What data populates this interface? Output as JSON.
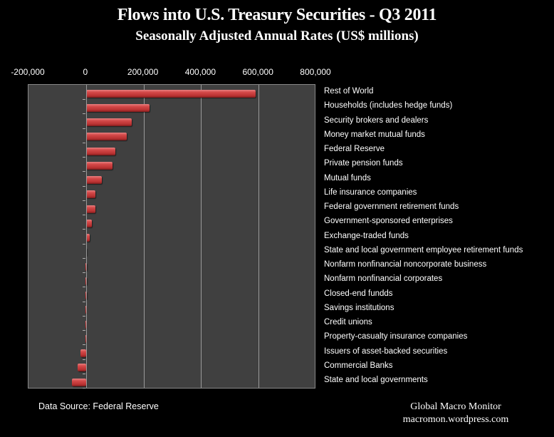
{
  "chart_data": {
    "type": "bar",
    "orientation": "horizontal",
    "title": "Flows into U.S. Treasury  Securities - Q3 2011",
    "subtitle": "Seasonally Adjusted Annual Rates (US$ millions)",
    "xlabel": "",
    "ylabel": "",
    "xlim": [
      -200000,
      800000
    ],
    "x_ticks": [
      "-200,000",
      "0",
      "200,000",
      "400,000",
      "600,000",
      "800,000"
    ],
    "x_tick_values": [
      -200000,
      0,
      200000,
      400000,
      600000,
      800000
    ],
    "x_axis_position": "top",
    "grid": true,
    "categories": [
      "Rest of World",
      "Households (includes hedge funds)",
      "Security brokers and dealers",
      "Money market mutual funds",
      "Federal Reserve",
      "Private pension funds",
      "Mutual funds",
      "Life insurance companies",
      "Federal government retirement funds",
      "Government-sponsored enterprises",
      "Exchange-traded funds",
      "State and local government employee retirement funds",
      "Nonfarm nonfinancial noncorporate business",
      "Nonfarm nonfinancial corporates",
      "Closed-end fundds",
      "Savings institutions",
      "Credit unions",
      "Property-casualty insurance companies",
      "Issuers of asset-backed securities",
      "Commercial Banks",
      "State and local governments"
    ],
    "values": [
      589000,
      222000,
      158000,
      142000,
      103000,
      93000,
      55000,
      33000,
      32000,
      20000,
      14000,
      3000,
      -1000,
      -1000,
      -1000,
      -2000,
      -2000,
      -3000,
      -20000,
      -30000,
      -49000
    ],
    "bar_color": "#c0393b"
  },
  "footer": {
    "source": "Data Source:  Federal Reserve",
    "brand_name": "Global Macro Monitor",
    "brand_url": "macromon.wordpress.com"
  }
}
